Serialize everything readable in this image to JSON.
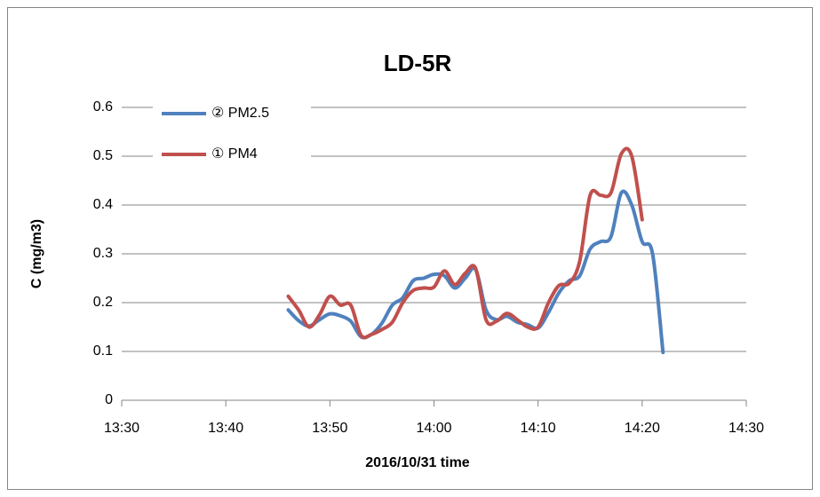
{
  "chart_data": {
    "type": "line",
    "title": "LD-5R",
    "xlabel": "2016/10/31  time",
    "ylabel": "C (mg/m3)",
    "xlim": [
      810,
      870
    ],
    "xticks": [
      {
        "value": 810,
        "label": "13:30"
      },
      {
        "value": 820,
        "label": "13:40"
      },
      {
        "value": 830,
        "label": "13:50"
      },
      {
        "value": 840,
        "label": "14:00"
      },
      {
        "value": 850,
        "label": "14:10"
      },
      {
        "value": 860,
        "label": "14:20"
      },
      {
        "value": 870,
        "label": "14:30"
      }
    ],
    "ylim": [
      0,
      0.6
    ],
    "yticks": [
      0,
      0.1,
      0.2,
      0.3,
      0.4,
      0.5,
      0.6
    ],
    "grid": true,
    "legend": "upper-left",
    "series": [
      {
        "name": "② PM2.5",
        "color": "#4f81bd",
        "x": [
          826,
          827,
          828,
          829,
          830,
          831,
          832,
          833,
          834,
          835,
          836,
          837,
          838,
          839,
          840,
          841,
          842,
          843,
          844,
          845,
          846,
          847,
          848,
          849,
          850,
          851,
          852,
          853,
          854,
          855,
          856,
          857,
          858,
          859,
          860,
          861,
          862
        ],
        "values": [
          0.185,
          0.163,
          0.152,
          0.165,
          0.177,
          0.173,
          0.162,
          0.13,
          0.135,
          0.158,
          0.195,
          0.21,
          0.245,
          0.25,
          0.258,
          0.255,
          0.23,
          0.25,
          0.268,
          0.185,
          0.165,
          0.172,
          0.16,
          0.155,
          0.148,
          0.18,
          0.22,
          0.245,
          0.255,
          0.31,
          0.325,
          0.335,
          0.425,
          0.4,
          0.325,
          0.3,
          0.098
        ]
      },
      {
        "name": "① PM4",
        "color": "#c0504d",
        "x": [
          826,
          827,
          828,
          829,
          830,
          831,
          832,
          833,
          834,
          835,
          836,
          837,
          838,
          839,
          840,
          841,
          842,
          843,
          844,
          845,
          846,
          847,
          848,
          849,
          850,
          851,
          852,
          853,
          854,
          855,
          856,
          857,
          858,
          859,
          860
        ],
        "values": [
          0.213,
          0.185,
          0.15,
          0.175,
          0.213,
          0.195,
          0.195,
          0.133,
          0.135,
          0.145,
          0.16,
          0.2,
          0.225,
          0.23,
          0.232,
          0.265,
          0.237,
          0.26,
          0.27,
          0.165,
          0.162,
          0.178,
          0.165,
          0.15,
          0.15,
          0.2,
          0.235,
          0.24,
          0.285,
          0.42,
          0.42,
          0.425,
          0.505,
          0.5,
          0.37
        ]
      }
    ]
  }
}
